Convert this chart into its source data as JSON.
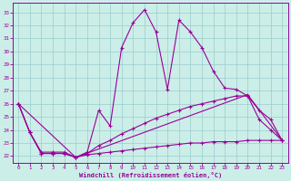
{
  "xlabel": "Windchill (Refroidissement éolien,°C)",
  "xlim": [
    -0.5,
    23.5
  ],
  "ylim": [
    21.5,
    33.7
  ],
  "yticks": [
    22,
    23,
    24,
    25,
    26,
    27,
    28,
    29,
    30,
    31,
    32,
    33
  ],
  "xticks": [
    0,
    1,
    2,
    3,
    4,
    5,
    6,
    7,
    8,
    9,
    10,
    11,
    12,
    13,
    14,
    15,
    16,
    17,
    18,
    19,
    20,
    21,
    22,
    23
  ],
  "bg_color": "#cceee8",
  "line_color": "#990099",
  "grid_color": "#99cccc",
  "line1_x": [
    0,
    1,
    2,
    3,
    4,
    5,
    6,
    7,
    8,
    9,
    10,
    11,
    12,
    13,
    14,
    15,
    16,
    17,
    18,
    19,
    20,
    21,
    22,
    23
  ],
  "line1_y": [
    26.0,
    23.8,
    22.2,
    22.2,
    22.2,
    21.9,
    22.3,
    25.5,
    24.3,
    30.3,
    32.2,
    33.2,
    31.5,
    27.1,
    32.4,
    31.5,
    30.3,
    28.5,
    27.2,
    27.1,
    26.6,
    24.8,
    24.0,
    23.2
  ],
  "line2_x": [
    0,
    1,
    2,
    3,
    4,
    5,
    6,
    7,
    8,
    9,
    10,
    11,
    12,
    13,
    14,
    15,
    16,
    17,
    18,
    19,
    20,
    21,
    22,
    23
  ],
  "line2_y": [
    26.0,
    23.8,
    22.3,
    22.3,
    22.3,
    21.9,
    22.2,
    22.8,
    23.2,
    23.7,
    24.1,
    24.5,
    24.9,
    25.2,
    25.5,
    25.8,
    26.0,
    26.2,
    26.4,
    26.6,
    26.6,
    25.5,
    24.8,
    23.2
  ],
  "line3_x": [
    0,
    5,
    20,
    23
  ],
  "line3_y": [
    26.0,
    21.9,
    26.7,
    23.2
  ],
  "line4_x": [
    0,
    1,
    2,
    3,
    4,
    5,
    6,
    7,
    8,
    9,
    10,
    11,
    12,
    13,
    14,
    15,
    16,
    17,
    18,
    19,
    20,
    21,
    22,
    23
  ],
  "line4_y": [
    26.0,
    23.8,
    22.2,
    22.2,
    22.2,
    21.9,
    22.1,
    22.2,
    22.3,
    22.4,
    22.5,
    22.6,
    22.7,
    22.8,
    22.9,
    23.0,
    23.0,
    23.1,
    23.1,
    23.1,
    23.2,
    23.2,
    23.2,
    23.2
  ]
}
